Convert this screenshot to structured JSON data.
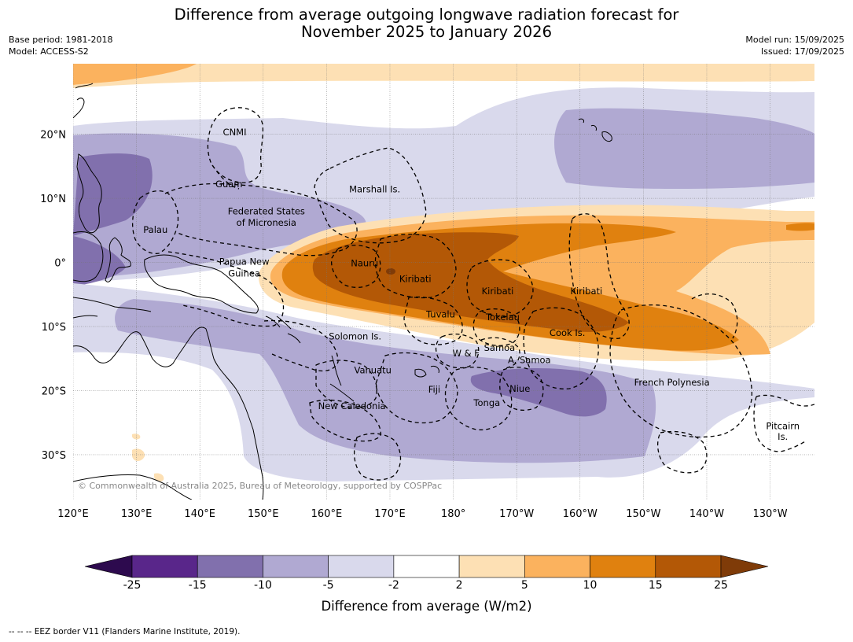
{
  "title_line1": "Difference from average outgoing longwave radiation forecast for",
  "title_line2": "November 2025 to January 2026",
  "meta_left": {
    "base_period": "Base period: 1981-2018",
    "model": "Model: ACCESS-S2"
  },
  "meta_right": {
    "model_run": "Model run: 15/09/2025",
    "issued": "Issued: 17/09/2025"
  },
  "map": {
    "lon_range": [
      120,
      237
    ],
    "lat_range": [
      -37,
      31
    ],
    "lon_ticks": [
      {
        "value": 120,
        "label": "120°E"
      },
      {
        "value": 130,
        "label": "130°E"
      },
      {
        "value": 140,
        "label": "140°E"
      },
      {
        "value": 150,
        "label": "150°E"
      },
      {
        "value": 160,
        "label": "160°E"
      },
      {
        "value": 170,
        "label": "170°E"
      },
      {
        "value": 180,
        "label": "180°"
      },
      {
        "value": 190,
        "label": "170°W"
      },
      {
        "value": 200,
        "label": "160°W"
      },
      {
        "value": 210,
        "label": "150°W"
      },
      {
        "value": 220,
        "label": "140°W"
      },
      {
        "value": 230,
        "label": "130°W"
      }
    ],
    "lat_ticks": [
      {
        "value": 20,
        "label": "20°N"
      },
      {
        "value": 10,
        "label": "10°N"
      },
      {
        "value": 0,
        "label": "0°"
      },
      {
        "value": -10,
        "label": "10°S"
      },
      {
        "value": -20,
        "label": "20°S"
      },
      {
        "value": -30,
        "label": "30°S"
      }
    ],
    "region_labels": [
      {
        "text": "CNMI",
        "lon": 145.5,
        "lat": 20.3
      },
      {
        "text": "Guam",
        "lon": 144.6,
        "lat": 12.2
      },
      {
        "text": "Marshall Is.",
        "lon": 167.6,
        "lat": 11.4
      },
      {
        "text": "Federated States",
        "lon": 150.5,
        "lat": 8.0
      },
      {
        "text": "of Micronesia",
        "lon": 150.5,
        "lat": 6.2
      },
      {
        "text": "Palau",
        "lon": 133.0,
        "lat": 5.1
      },
      {
        "text": "Papua New",
        "lon": 147.0,
        "lat": 0.1
      },
      {
        "text": "Guinea",
        "lon": 147.0,
        "lat": -1.7
      },
      {
        "text": "Nauru",
        "lon": 166.0,
        "lat": -0.1
      },
      {
        "text": "Kiribati",
        "lon": 174.0,
        "lat": -2.6
      },
      {
        "text": "Kiribati",
        "lon": 187.0,
        "lat": -4.5
      },
      {
        "text": "Kiribati",
        "lon": 201.0,
        "lat": -4.5
      },
      {
        "text": "Tuvalu",
        "lon": 178.0,
        "lat": -8.1
      },
      {
        "text": "Tokelau",
        "lon": 187.8,
        "lat": -8.5
      },
      {
        "text": "Cook Is.",
        "lon": 198.0,
        "lat": -11.0
      },
      {
        "text": "Solomon Is.",
        "lon": 164.5,
        "lat": -11.5
      },
      {
        "text": "Samoa",
        "lon": 187.3,
        "lat": -13.3
      },
      {
        "text": "W & F",
        "lon": 182.0,
        "lat": -14.2
      },
      {
        "text": "A. Samoa",
        "lon": 192.0,
        "lat": -15.2
      },
      {
        "text": "Vanuatu",
        "lon": 167.3,
        "lat": -16.8
      },
      {
        "text": "Fiji",
        "lon": 177.0,
        "lat": -19.8
      },
      {
        "text": "Niue",
        "lon": 190.5,
        "lat": -19.7
      },
      {
        "text": "Tonga",
        "lon": 185.3,
        "lat": -21.9
      },
      {
        "text": "French Polynesia",
        "lon": 214.5,
        "lat": -18.7
      },
      {
        "text": "New Caledonia",
        "lon": 164.0,
        "lat": -22.4
      },
      {
        "text": "Pitcairn",
        "lon": 232.0,
        "lat": -25.5
      },
      {
        "text": "Is.",
        "lon": 232.0,
        "lat": -27.2
      }
    ],
    "copyright": "© Commonwealth of Australia 2025, Bureau of Meteorology, supported by COSPPac"
  },
  "colorbar": {
    "label": "Difference from average (W/m2)",
    "ticks": [
      "-25",
      "-15",
      "-10",
      "-5",
      "-2",
      "2",
      "5",
      "10",
      "15",
      "25"
    ],
    "colors": [
      "#2d0a4e",
      "#59268a",
      "#8170ad",
      "#b0a9d2",
      "#d9d9ec",
      "#ffffff",
      "#fde0b4",
      "#fbb25e",
      "#e0810f",
      "#b35806",
      "#7f3b08"
    ]
  },
  "footer": "--  --  -- EEZ border V11 (Flanders Marine Institute, 2019)."
}
